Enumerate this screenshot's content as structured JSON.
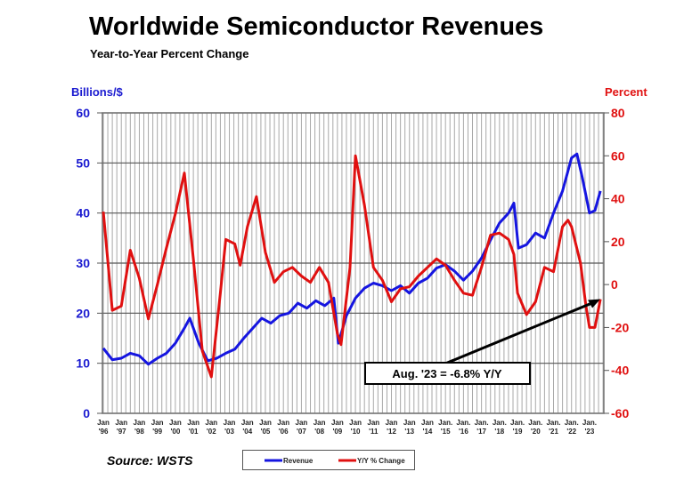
{
  "chart_data": {
    "type": "line",
    "title": "Worldwide Semiconductor Revenues",
    "subtitle": "Year-to-Year Percent Change",
    "ylabel": "Billions/$",
    "y2label": "Percent",
    "ylim": [
      0,
      60
    ],
    "y2lim": [
      -60,
      80
    ],
    "yticks": [
      0,
      10,
      20,
      30,
      40,
      50,
      60
    ],
    "y2ticks": [
      -60,
      -40,
      -20,
      0,
      20,
      40,
      60,
      80
    ],
    "xlim": [
      1996,
      2023.67
    ],
    "xticks": [
      {
        "l1": "Jan",
        "l2": "'96"
      },
      {
        "l1": "Jan",
        "l2": "'97"
      },
      {
        "l1": "Jan",
        "l2": "'98"
      },
      {
        "l1": "Jan",
        "l2": "'99"
      },
      {
        "l1": "Jan",
        "l2": "'00"
      },
      {
        "l1": "Jan",
        "l2": "'01"
      },
      {
        "l1": "Jan",
        "l2": "'02"
      },
      {
        "l1": "Jan",
        "l2": "'03"
      },
      {
        "l1": "Jan",
        "l2": "'04"
      },
      {
        "l1": "Jan",
        "l2": "'05"
      },
      {
        "l1": "Jan",
        "l2": "'06"
      },
      {
        "l1": "Jan",
        "l2": "'07"
      },
      {
        "l1": "Jan",
        "l2": "'08"
      },
      {
        "l1": "Jan",
        "l2": "'09"
      },
      {
        "l1": "Jan",
        "l2": "'10"
      },
      {
        "l1": "Jan",
        "l2": "'11"
      },
      {
        "l1": "Jan",
        "l2": "'12"
      },
      {
        "l1": "Jan",
        "l2": "'13"
      },
      {
        "l1": "Jan",
        "l2": "'14"
      },
      {
        "l1": "Jan.",
        "l2": "'15"
      },
      {
        "l1": "Jan.",
        "l2": "'16"
      },
      {
        "l1": "Jan.",
        "l2": "'17"
      },
      {
        "l1": "Jan.",
        "l2": "'18"
      },
      {
        "l1": "Jan.",
        "l2": "'19"
      },
      {
        "l1": "Jan.",
        "l2": "'20"
      },
      {
        "l1": "Jan.",
        "l2": "'21"
      },
      {
        "l1": "Jan.",
        "l2": "'22"
      },
      {
        "l1": "Jan.",
        "l2": "'23"
      }
    ],
    "grid": true,
    "legend_position": "bottom",
    "series": [
      {
        "name": "Revenue",
        "axis": "left",
        "color": "#1515e0",
        "x": [
          1996,
          1996.5,
          1997,
          1997.5,
          1998,
          1998.5,
          1999,
          1999.5,
          2000,
          2000.5,
          2000.8,
          2001.3,
          2001.8,
          2002.3,
          2002.8,
          2003.3,
          2003.8,
          2004.3,
          2004.8,
          2005.3,
          2005.8,
          2006.3,
          2006.8,
          2007.3,
          2007.8,
          2008.3,
          2008.8,
          2009.05,
          2009.5,
          2010,
          2010.5,
          2011,
          2011.5,
          2012,
          2012.5,
          2013,
          2013.5,
          2014,
          2014.5,
          2015,
          2015.5,
          2016,
          2016.5,
          2017,
          2017.5,
          2018,
          2018.5,
          2018.8,
          2019.05,
          2019.5,
          2020,
          2020.5,
          2021,
          2021.5,
          2022,
          2022.3,
          2022.6,
          2023,
          2023.3,
          2023.6
        ],
        "values": [
          13,
          10.7,
          11,
          12,
          11.5,
          9.8,
          11,
          12,
          14,
          17,
          19,
          14,
          10.5,
          11,
          12,
          12.8,
          15,
          17,
          19,
          18,
          19.5,
          20,
          22,
          21,
          22.5,
          21.5,
          23,
          14,
          19.5,
          23,
          25,
          26,
          25.5,
          24.5,
          25.5,
          24,
          26,
          27,
          29,
          29.7,
          28.4,
          26.6,
          28.4,
          31,
          34.6,
          38,
          40,
          42,
          33,
          33.7,
          36,
          35,
          40,
          44.4,
          51,
          51.8,
          47,
          40,
          40.5,
          44.4
        ]
      },
      {
        "name": "Y/Y % Change",
        "axis": "right",
        "color": "#e01010",
        "x": [
          1996,
          1996.5,
          1997,
          1997.5,
          1998,
          1998.5,
          1999,
          1999.5,
          2000,
          2000.5,
          2001,
          2001.5,
          2002,
          2002.5,
          2002.8,
          2003.3,
          2003.6,
          2004,
          2004.5,
          2005,
          2005.5,
          2006,
          2006.5,
          2007,
          2007.5,
          2008,
          2008.5,
          2009,
          2009.2,
          2009.7,
          2010,
          2010.5,
          2011,
          2011.5,
          2012,
          2012.5,
          2013,
          2013.5,
          2014,
          2014.5,
          2015,
          2015.5,
          2016,
          2016.5,
          2017,
          2017.5,
          2018,
          2018.5,
          2018.8,
          2019,
          2019.5,
          2020,
          2020.5,
          2021,
          2021.5,
          2021.8,
          2022,
          2022.5,
          2022.8,
          2023,
          2023.3,
          2023.6
        ],
        "values": [
          34,
          -12,
          -10,
          16,
          3,
          -16,
          0,
          17,
          33,
          52,
          12,
          -31,
          -43,
          -4,
          21,
          19,
          9,
          27,
          41,
          15,
          1,
          6,
          8,
          4,
          1,
          8,
          1,
          -23,
          -28,
          8,
          60,
          37,
          8,
          2,
          -8,
          -2,
          -1,
          4,
          8,
          12,
          9,
          2,
          -4,
          -5,
          8,
          23,
          24,
          21,
          14,
          -4,
          -14,
          -8,
          8,
          6,
          27,
          30,
          27,
          10,
          -10,
          -20,
          -20,
          -6.8
        ]
      }
    ],
    "annotation": "Aug. '23 = -6.8% Y/Y"
  },
  "source": "Source: WSTS"
}
